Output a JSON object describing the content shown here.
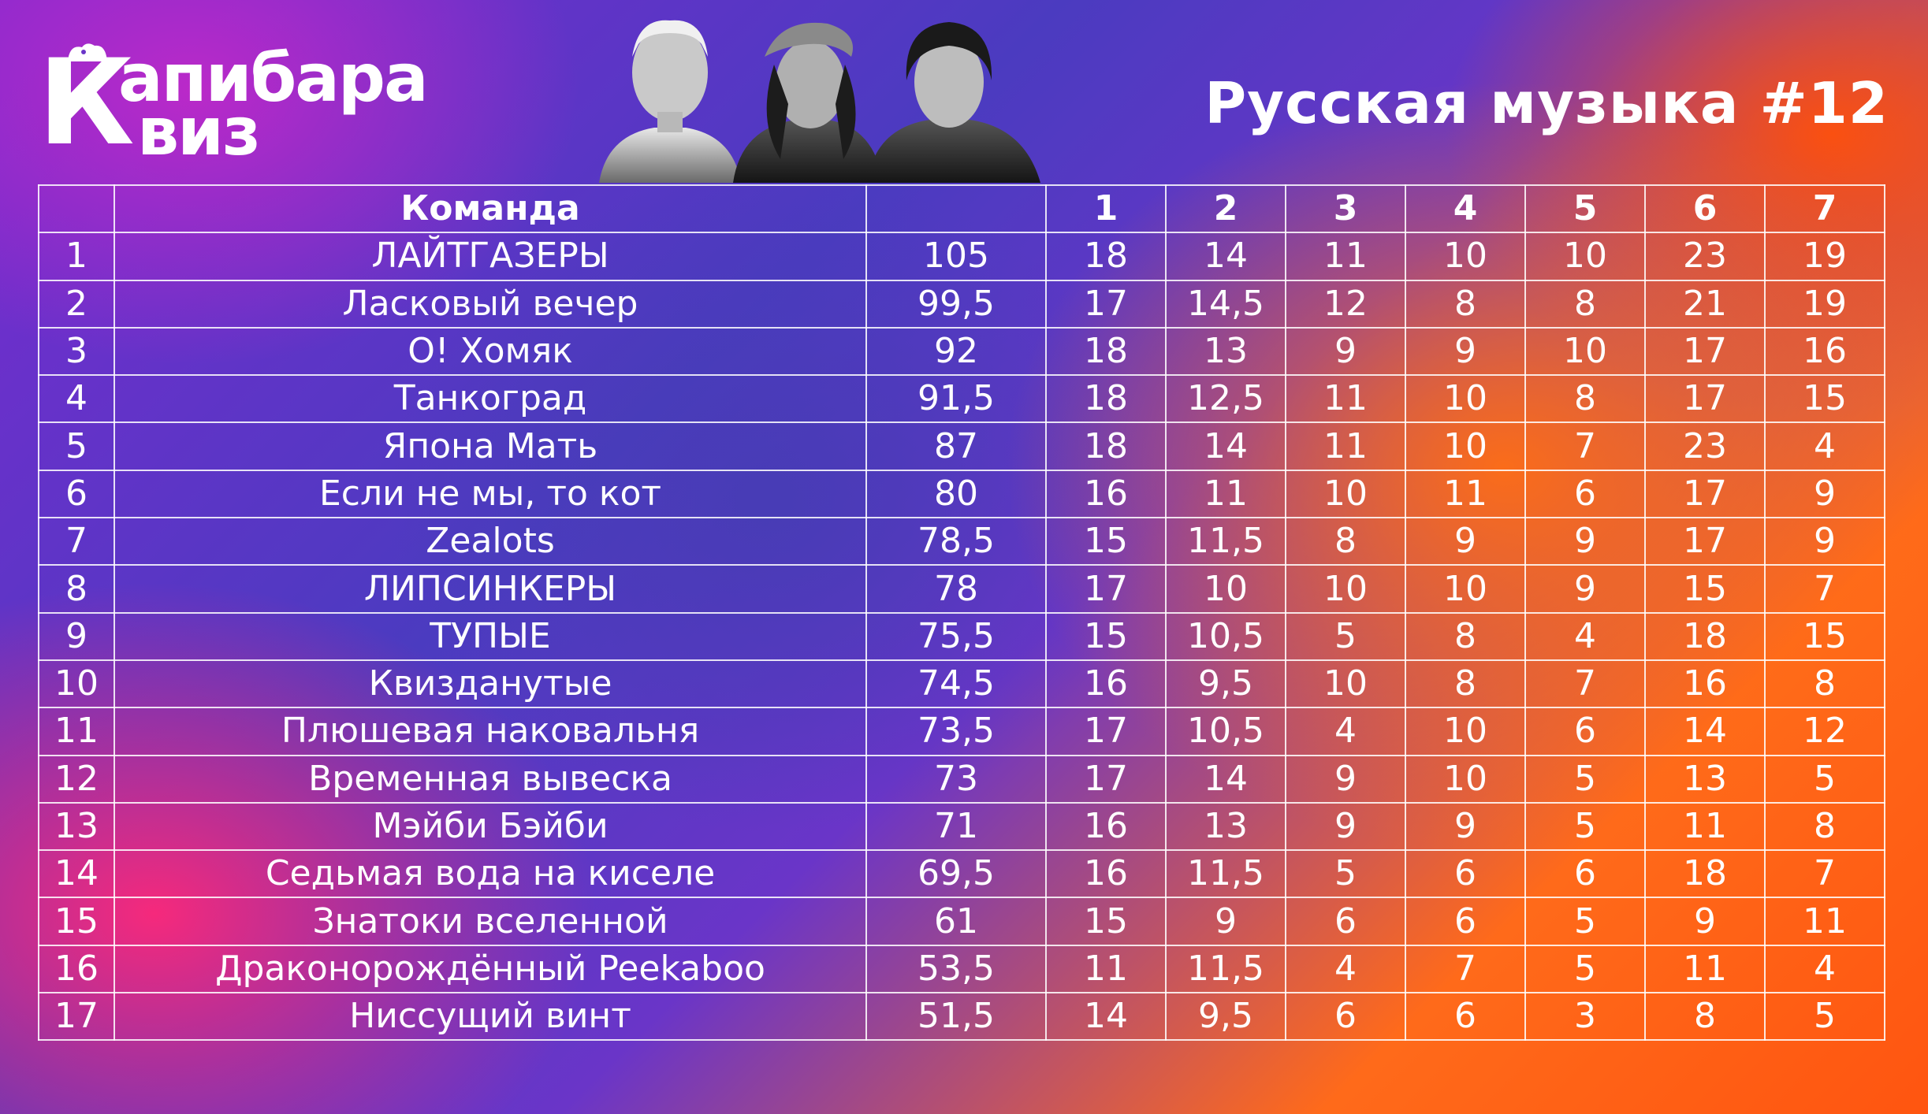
{
  "logo": {
    "k": "К",
    "line1": "апибара",
    "line2": "виз"
  },
  "title": "Русская музыка #12",
  "table": {
    "header_team": "Команда",
    "header_total": "",
    "rounds": [
      "1",
      "2",
      "3",
      "4",
      "5",
      "6",
      "7"
    ],
    "rows": [
      {
        "place": "1",
        "team": "ЛАЙТГАЗЕРЫ",
        "total": "105",
        "scores": [
          "18",
          "14",
          "11",
          "10",
          "10",
          "23",
          "19"
        ]
      },
      {
        "place": "2",
        "team": "Ласковый вечер",
        "total": "99,5",
        "scores": [
          "17",
          "14,5",
          "12",
          "8",
          "8",
          "21",
          "19"
        ]
      },
      {
        "place": "3",
        "team": "О! Хомяк",
        "total": "92",
        "scores": [
          "18",
          "13",
          "9",
          "9",
          "10",
          "17",
          "16"
        ]
      },
      {
        "place": "4",
        "team": "Танкоград",
        "total": "91,5",
        "scores": [
          "18",
          "12,5",
          "11",
          "10",
          "8",
          "17",
          "15"
        ]
      },
      {
        "place": "5",
        "team": "Япона Мать",
        "total": "87",
        "scores": [
          "18",
          "14",
          "11",
          "10",
          "7",
          "23",
          "4"
        ]
      },
      {
        "place": "6",
        "team": "Если не мы, то кот",
        "total": "80",
        "scores": [
          "16",
          "11",
          "10",
          "11",
          "6",
          "17",
          "9"
        ]
      },
      {
        "place": "7",
        "team": "Zealots",
        "total": "78,5",
        "scores": [
          "15",
          "11,5",
          "8",
          "9",
          "9",
          "17",
          "9"
        ]
      },
      {
        "place": "8",
        "team": "ЛИПСИНКЕРЫ",
        "total": "78",
        "scores": [
          "17",
          "10",
          "10",
          "10",
          "9",
          "15",
          "7"
        ]
      },
      {
        "place": "9",
        "team": "ТУПЫЕ",
        "total": "75,5",
        "scores": [
          "15",
          "10,5",
          "5",
          "8",
          "4",
          "18",
          "15"
        ]
      },
      {
        "place": "10",
        "team": "Квизданутые",
        "total": "74,5",
        "scores": [
          "16",
          "9,5",
          "10",
          "8",
          "7",
          "16",
          "8"
        ]
      },
      {
        "place": "11",
        "team": "Плюшевая наковальня",
        "total": "73,5",
        "scores": [
          "17",
          "10,5",
          "4",
          "10",
          "6",
          "14",
          "12"
        ]
      },
      {
        "place": "12",
        "team": "Временная вывеска",
        "total": "73",
        "scores": [
          "17",
          "14",
          "9",
          "10",
          "5",
          "13",
          "5"
        ]
      },
      {
        "place": "13",
        "team": "Мэйби Бэйби",
        "total": "71",
        "scores": [
          "16",
          "13",
          "9",
          "9",
          "5",
          "11",
          "8"
        ]
      },
      {
        "place": "14",
        "team": "Седьмая вода на киселе",
        "total": "69,5",
        "scores": [
          "16",
          "11,5",
          "5",
          "6",
          "6",
          "18",
          "7"
        ]
      },
      {
        "place": "15",
        "team": "Знатоки вселенной",
        "total": "61",
        "scores": [
          "15",
          "9",
          "6",
          "6",
          "5",
          "9",
          "11"
        ]
      },
      {
        "place": "16",
        "team": "Драконорождённый Peekaboo",
        "total": "53,5",
        "scores": [
          "11",
          "11,5",
          "4",
          "7",
          "5",
          "11",
          "4"
        ]
      },
      {
        "place": "17",
        "team": "Ниссущий винт",
        "total": "51,5",
        "scores": [
          "14",
          "9,5",
          "6",
          "6",
          "3",
          "8",
          "5"
        ]
      }
    ]
  },
  "icons": {
    "logo_ears": "capybara-ears-icon"
  },
  "colors": {
    "orange": "#ff6a1a",
    "purple": "#5a3ac8",
    "pink": "#ff2f7a",
    "text": "#ffffff"
  }
}
